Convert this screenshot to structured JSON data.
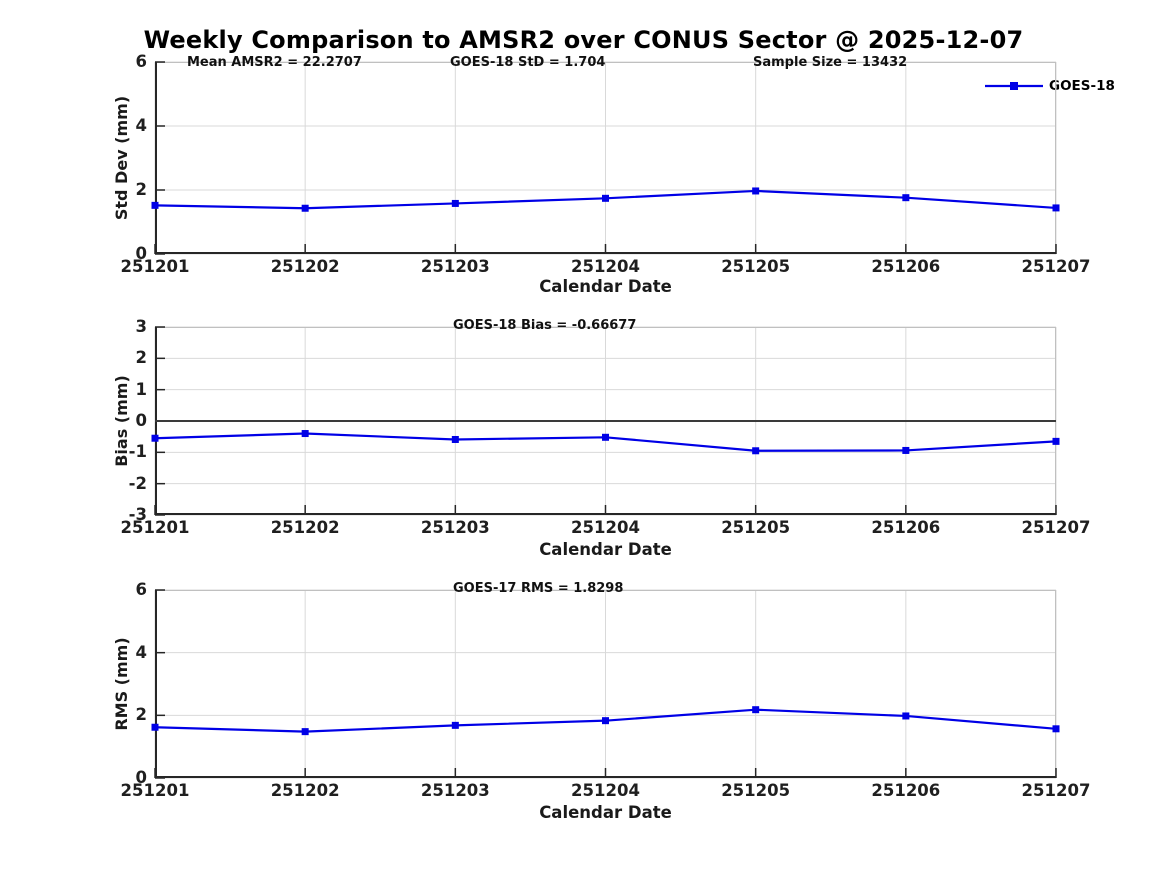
{
  "figure": {
    "title": "Weekly Comparison to AMSR2 over CONUS Sector @ 2025-12-07",
    "legend": {
      "label": "GOES-18",
      "position": "top-right",
      "line_color": "#0000e6",
      "marker": "filled-square"
    }
  },
  "colors": {
    "series_blue": "#0000e6",
    "grid_gray": "#d9d9d9",
    "box_gray": "#c0c0c0",
    "spine_dark": "#262626",
    "zero_line": "#3a3a3a"
  },
  "chart_data": [
    {
      "type": "line",
      "panel": "std-dev",
      "title": "",
      "annotations": [
        "Mean AMSR2 = 22.2707",
        "GOES-18 StD = 1.704",
        "Sample Size = 13432"
      ],
      "categories": [
        "251201",
        "251202",
        "251203",
        "251204",
        "251205",
        "251206",
        "251207"
      ],
      "series": [
        {
          "name": "GOES-18",
          "values": [
            1.52,
            1.43,
            1.58,
            1.74,
            1.97,
            1.76,
            1.44
          ]
        }
      ],
      "xlabel": "Calendar Date",
      "ylabel": "Std Dev (mm)",
      "ylim": [
        0,
        6
      ],
      "yticks": [
        0,
        2,
        4,
        6
      ],
      "grid": true,
      "zero_line": false
    },
    {
      "type": "line",
      "panel": "bias",
      "title": "",
      "annotations": [
        "GOES-18 Bias  = -0.66677"
      ],
      "categories": [
        "251201",
        "251202",
        "251203",
        "251204",
        "251205",
        "251206",
        "251207"
      ],
      "series": [
        {
          "name": "GOES-18",
          "values": [
            -0.55,
            -0.4,
            -0.59,
            -0.52,
            -0.95,
            -0.94,
            -0.65
          ]
        }
      ],
      "xlabel": "Calendar Date",
      "ylabel": "Bias (mm)",
      "ylim": [
        -3,
        3
      ],
      "yticks": [
        -3,
        -2,
        -1,
        0,
        1,
        2,
        3
      ],
      "grid": true,
      "zero_line": true
    },
    {
      "type": "line",
      "panel": "rms",
      "title": "",
      "annotations": [
        "GOES-17 RMS = 1.8298"
      ],
      "categories": [
        "251201",
        "251202",
        "251203",
        "251204",
        "251205",
        "251206",
        "251207"
      ],
      "series": [
        {
          "name": "GOES-18",
          "values": [
            1.62,
            1.48,
            1.68,
            1.83,
            2.18,
            1.98,
            1.57
          ]
        }
      ],
      "xlabel": "Calendar Date",
      "ylabel": "RMS (mm)",
      "ylim": [
        0,
        6
      ],
      "yticks": [
        0,
        2,
        4,
        6
      ],
      "grid": true,
      "zero_line": false
    }
  ]
}
